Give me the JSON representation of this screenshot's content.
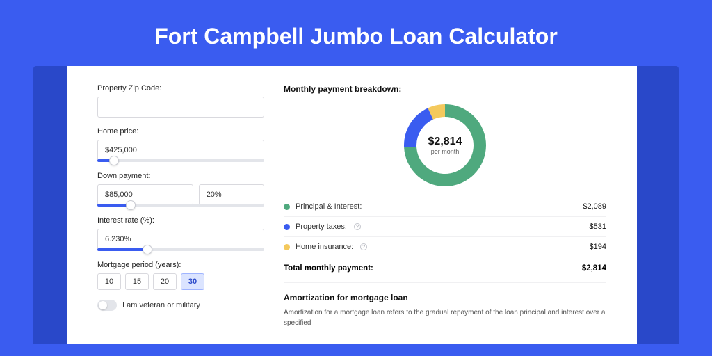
{
  "hero": {
    "title": "Fort Campbell Jumbo Loan Calculator"
  },
  "form": {
    "zip": {
      "label": "Property Zip Code:",
      "value": ""
    },
    "price": {
      "label": "Home price:",
      "value": "$425,000",
      "slider_pct": 10
    },
    "down": {
      "label": "Down payment:",
      "amount": "$85,000",
      "pct": "20%",
      "slider_pct": 20
    },
    "rate": {
      "label": "Interest rate (%):",
      "value": "6.230%",
      "slider_pct": 30
    },
    "period": {
      "label": "Mortgage period (years):",
      "options": [
        "10",
        "15",
        "20",
        "30"
      ],
      "selected": "30"
    },
    "veteran": {
      "label": "I am veteran or military",
      "on": false
    }
  },
  "breakdown": {
    "title": "Monthly payment breakdown:",
    "donut": {
      "amount": "$2,814",
      "sub": "per month",
      "slices": [
        {
          "color": "#4fa97e",
          "pct": 74
        },
        {
          "color": "#3a5cf0",
          "pct": 19
        },
        {
          "color": "#f4c95d",
          "pct": 7
        }
      ],
      "thickness": 18,
      "radius": 50
    },
    "lines": [
      {
        "color": "#4fa97e",
        "label": "Principal & Interest:",
        "info": false,
        "value": "$2,089"
      },
      {
        "color": "#3a5cf0",
        "label": "Property taxes:",
        "info": true,
        "value": "$531"
      },
      {
        "color": "#f4c95d",
        "label": "Home insurance:",
        "info": true,
        "value": "$194"
      }
    ],
    "total": {
      "label": "Total monthly payment:",
      "value": "$2,814"
    }
  },
  "amort": {
    "title": "Amortization for mortgage loan",
    "text": "Amortization for a mortgage loan refers to the gradual repayment of the loan principal and interest over a specified"
  },
  "colors": {
    "page_bg": "#3a5cf0",
    "shadow_bg": "#2948c9"
  }
}
